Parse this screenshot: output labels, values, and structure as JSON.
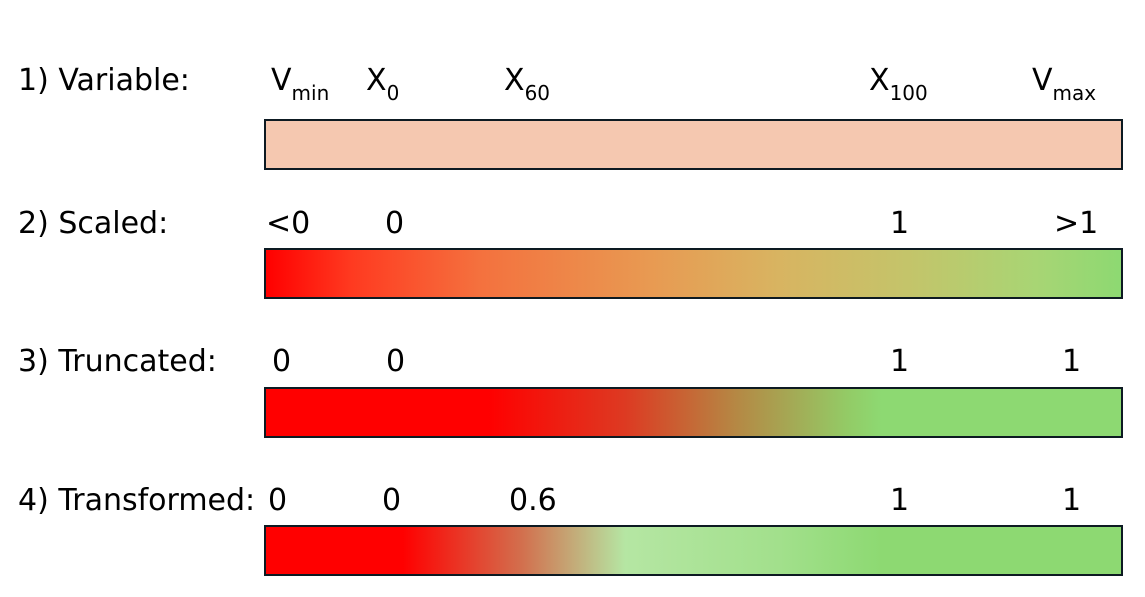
{
  "rows": [
    {
      "label": "1) Variable:",
      "ticks": [
        {
          "main": "V",
          "sub": "min"
        },
        {
          "main": "X",
          "sub": "0"
        },
        {
          "main": "X",
          "sub": "60"
        },
        {
          "main": "X",
          "sub": "100"
        },
        {
          "main": "V",
          "sub": "max"
        }
      ]
    },
    {
      "label": "2) Scaled:",
      "ticks": [
        {
          "main": "<0"
        },
        {
          "main": "0"
        },
        {
          "main": "1"
        },
        {
          "main": ">1"
        }
      ]
    },
    {
      "label": "3) Truncated:",
      "ticks": [
        {
          "main": "0"
        },
        {
          "main": "0"
        },
        {
          "main": "1"
        },
        {
          "main": "1"
        }
      ]
    },
    {
      "label": "4) Transformed:",
      "ticks": [
        {
          "main": "0"
        },
        {
          "main": "0"
        },
        {
          "main": "0.6"
        },
        {
          "main": "1"
        },
        {
          "main": "1"
        }
      ]
    }
  ],
  "colors": {
    "variable_fill": "#f5c8b0",
    "red": "#ff0000",
    "green": "#8dd972",
    "light_green": "#b5e6a3",
    "border": "#0d1a22"
  }
}
